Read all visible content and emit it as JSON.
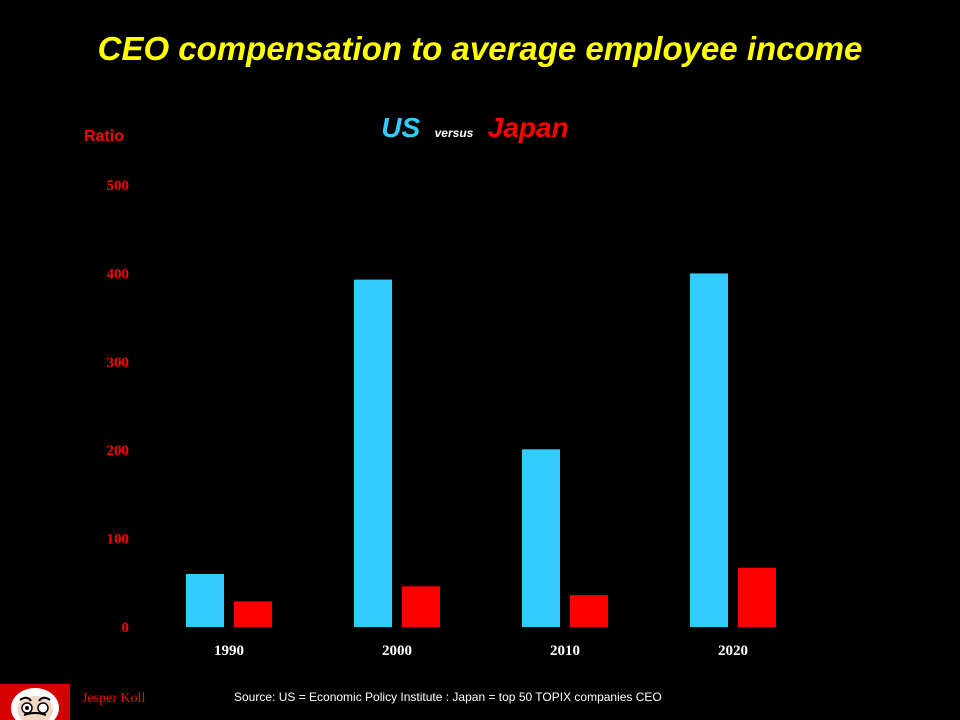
{
  "title": "CEO compensation to average employee income",
  "subtitle": {
    "us": "US",
    "versus": "versus",
    "japan": "Japan"
  },
  "ratio_label": "Ratio",
  "source": "Source: US = Economic Policy Institute  : Japan  = top 50 TOPIX  companies CEO",
  "author": "Jesper Koll",
  "colors": {
    "us": "#33ccff",
    "japan": "#ff0000",
    "title": "#ffff00",
    "axis_text": "#ff0000",
    "background": "#000000"
  },
  "chart_data": {
    "type": "bar",
    "categories": [
      "1990",
      "2000",
      "2010",
      "2020"
    ],
    "series": [
      {
        "name": "US",
        "values": [
          60,
          393,
          201,
          400
        ]
      },
      {
        "name": "Japan",
        "values": [
          29,
          46,
          36,
          67
        ]
      }
    ],
    "ylabel": "Ratio",
    "yticks": [
      0,
      100,
      200,
      300,
      400,
      500
    ],
    "ylim": [
      0,
      500
    ],
    "grid": false,
    "legend": "top-center"
  }
}
